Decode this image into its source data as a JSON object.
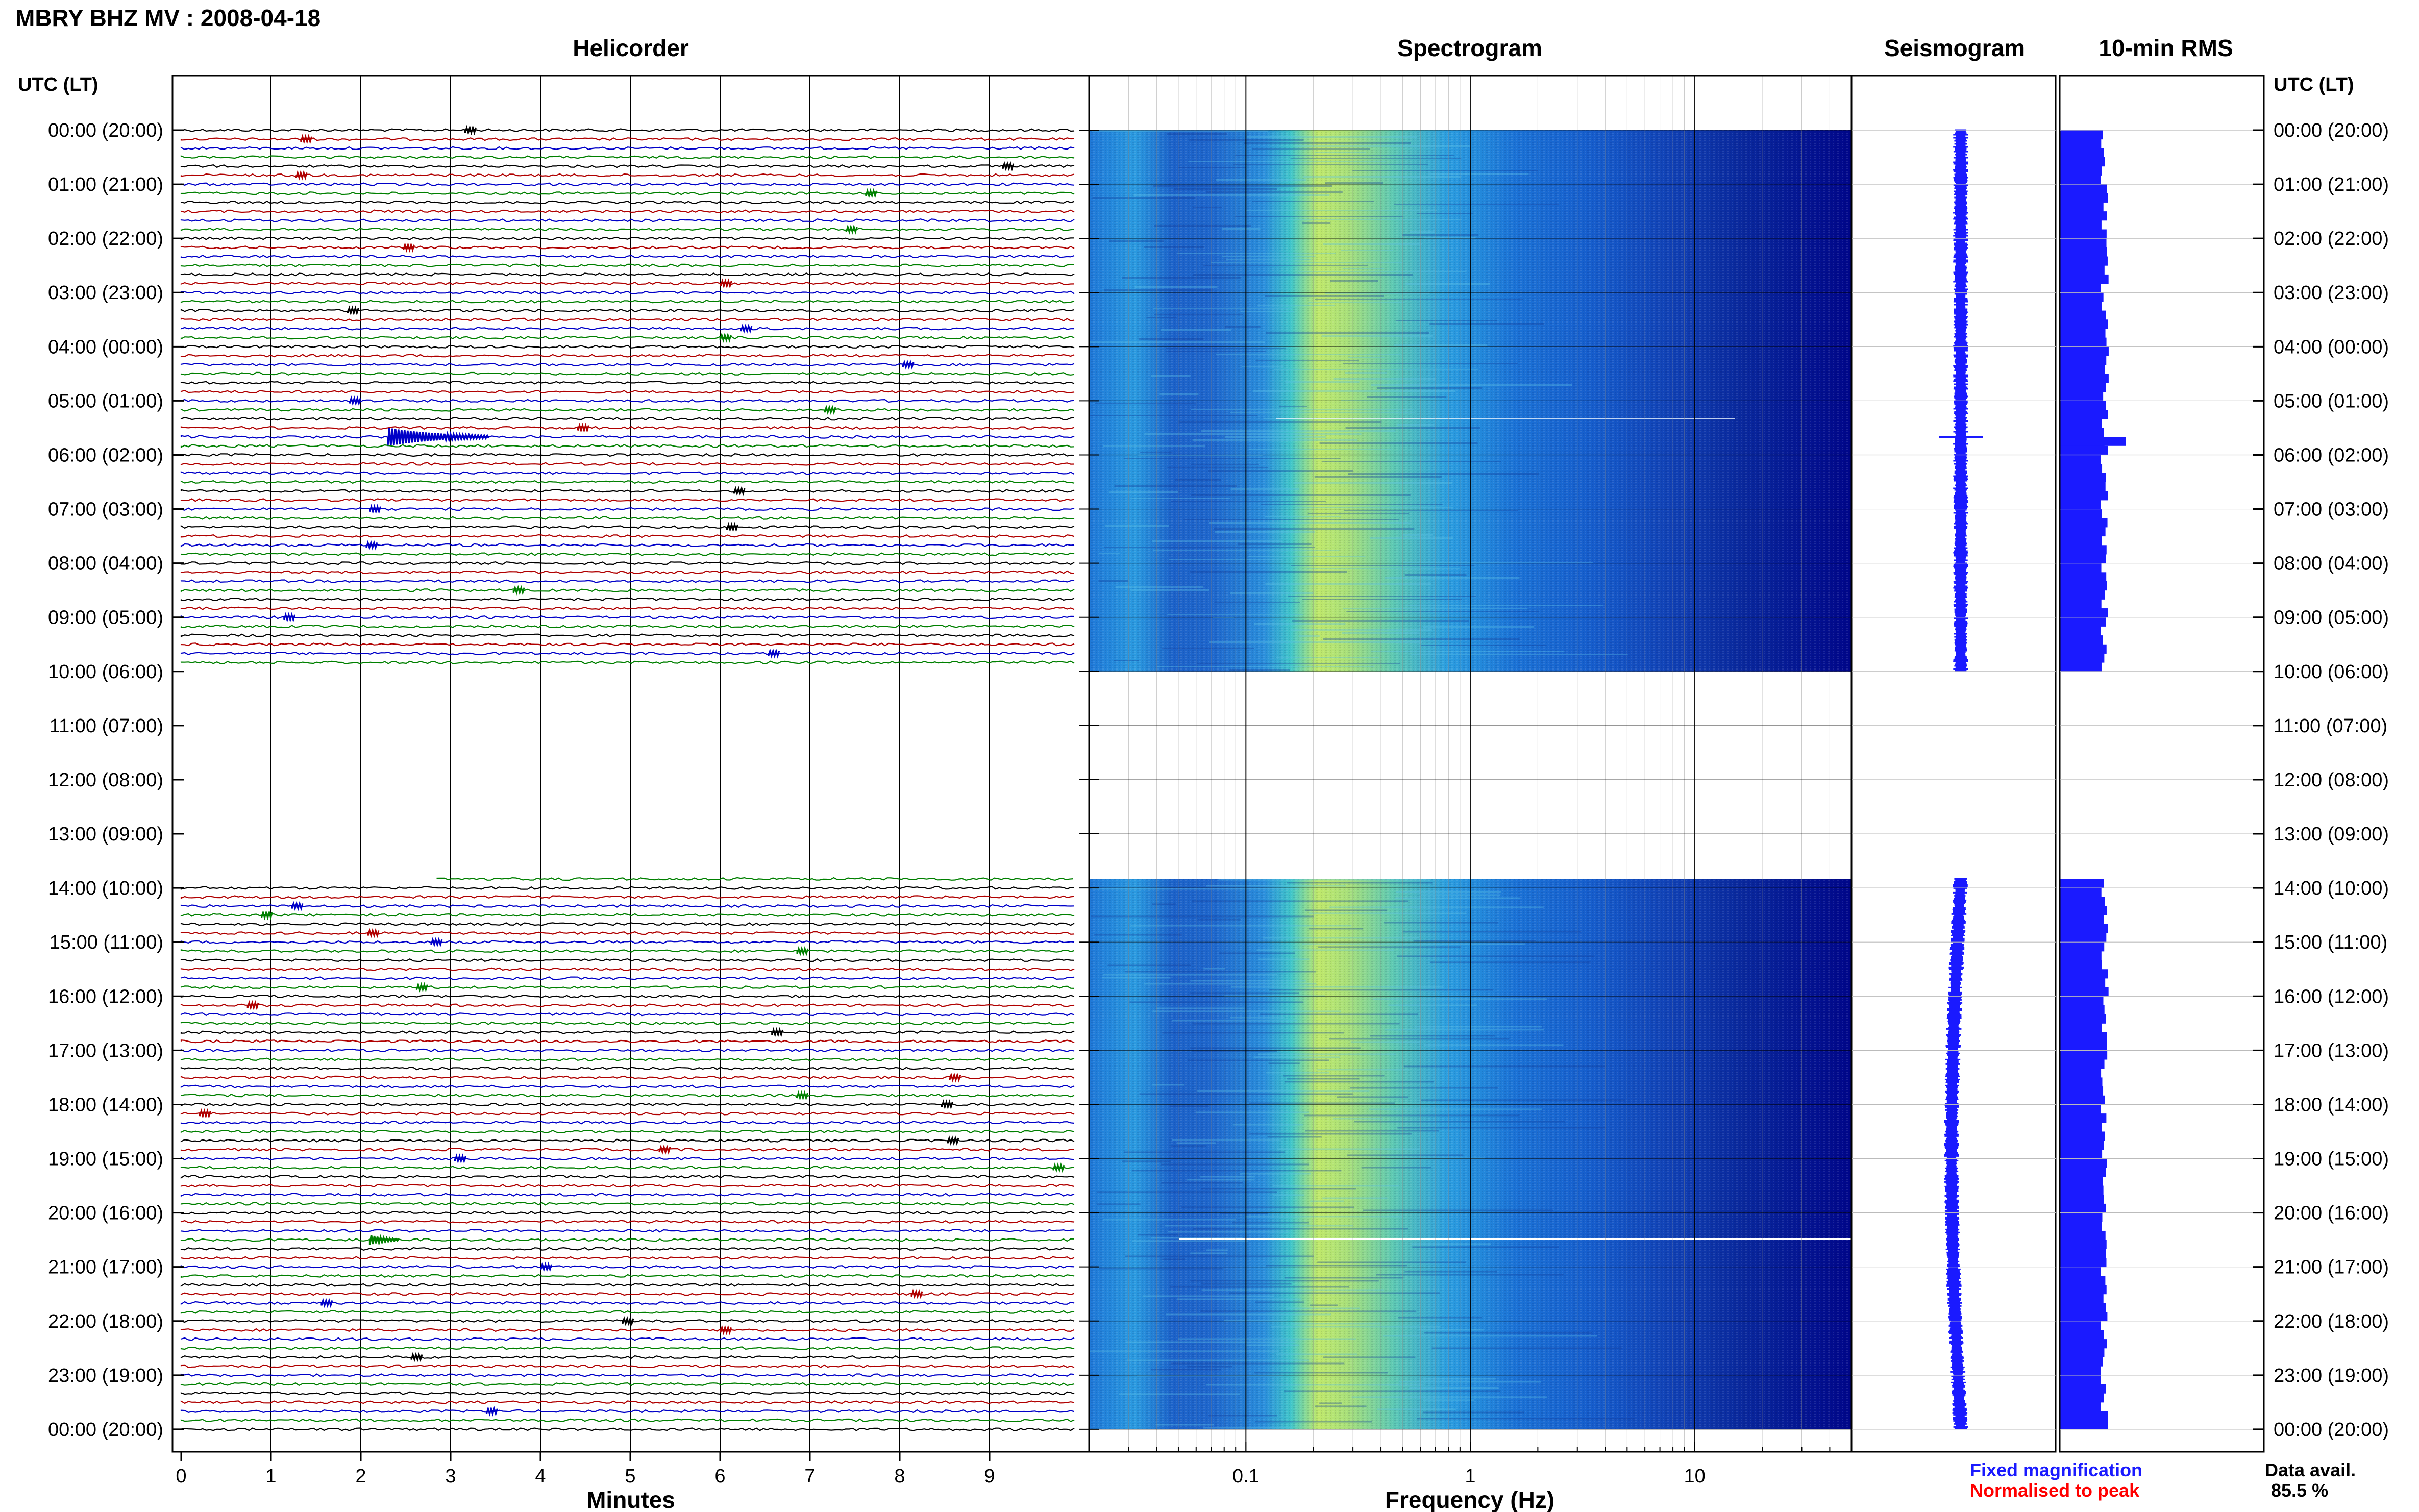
{
  "title": "MBRY BHZ MV : 2008-04-18",
  "panels": {
    "helicorder": "Helicorder",
    "spectrogram": "Spectrogram",
    "seismogram": "Seismogram",
    "rms": "10-min RMS"
  },
  "time_axis_label": "UTC (LT)",
  "x_axis": {
    "helicorder": "Minutes",
    "spectrogram": "Frequency (Hz)"
  },
  "legend": {
    "fixed": "Fixed magnification",
    "normalised": "Normalised to peak"
  },
  "data_avail": {
    "label": "Data avail.",
    "value": "85.5 %"
  },
  "colors": {
    "black_trace": "#000000",
    "red_trace": "#b00000",
    "blue_trace": "#0000c8",
    "green_trace": "#008000",
    "rms_bar": "#1a1aff",
    "legend_blue": "#1a1aff",
    "legend_red": "#ff0000",
    "spectro_dark": "#00008b"
  },
  "chart_data": [
    {
      "type": "line",
      "name": "helicorder",
      "xlabel": "Minutes",
      "xlim": [
        0,
        10
      ],
      "x_ticks": [
        "0",
        "1",
        "2",
        "3",
        "4",
        "5",
        "6",
        "7",
        "8",
        "9"
      ],
      "y_ticks": [
        "00:00 (20:00)",
        "01:00 (21:00)",
        "02:00 (22:00)",
        "03:00 (23:00)",
        "04:00 (00:00)",
        "05:00 (01:00)",
        "06:00 (02:00)",
        "07:00 (03:00)",
        "08:00 (04:00)",
        "09:00 (05:00)",
        "10:00 (06:00)",
        "11:00 (07:00)",
        "12:00 (08:00)",
        "13:00 (09:00)",
        "14:00 (10:00)",
        "15:00 (11:00)",
        "16:00 (12:00)",
        "17:00 (13:00)",
        "18:00 (14:00)",
        "19:00 (15:00)",
        "20:00 (16:00)",
        "21:00 (17:00)",
        "22:00 (18:00)",
        "23:00 (19:00)",
        "00:00 (20:00)"
      ],
      "trace_minutes_per_line": 10,
      "data_gap_utc": [
        "10:00",
        "13:50"
      ],
      "events": [
        {
          "utc": "05:40",
          "minute": 2.3,
          "note": "largest event"
        },
        {
          "utc": "20:30",
          "minute": 2.1
        }
      ]
    },
    {
      "type": "heatmap",
      "name": "spectrogram",
      "xlabel": "Frequency (Hz)",
      "x_scale": "log",
      "xlim": [
        0.02,
        50
      ],
      "x_ticks": [
        "0.1",
        "1",
        "10"
      ],
      "peak_band_hz": [
        0.15,
        0.5
      ],
      "data_gap_utc": [
        "10:00",
        "13:50"
      ]
    },
    {
      "type": "line",
      "name": "seismogram",
      "data_gap_utc": [
        "10:00",
        "13:50"
      ],
      "spike_utc": "05:40"
    },
    {
      "type": "bar",
      "name": "10-min RMS",
      "data_gap_utc": [
        "10:00",
        "13:50"
      ],
      "spike_utc": "05:40"
    }
  ]
}
